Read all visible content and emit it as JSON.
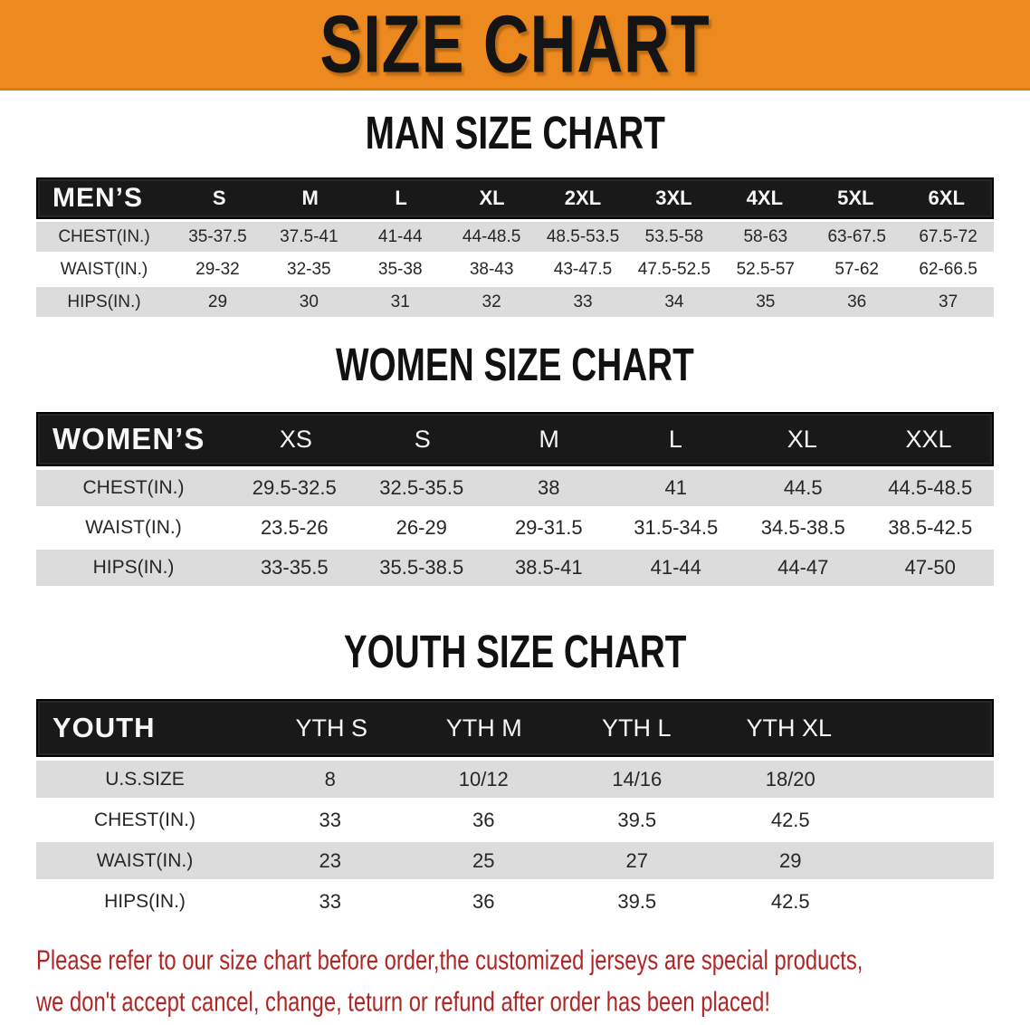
{
  "banner": {
    "title": "SIZE CHART"
  },
  "sections": [
    {
      "id": "men",
      "title": "MAN SIZE CHART",
      "header_label": "MEN’S",
      "columns": [
        "S",
        "M",
        "L",
        "XL",
        "2XL",
        "3XL",
        "4XL",
        "5XL",
        "6XL"
      ],
      "rows": [
        {
          "label": "CHEST(IN.)",
          "values": [
            "35-37.5",
            "37.5-41",
            "41-44",
            "44-48.5",
            "48.5-53.5",
            "53.5-58",
            "58-63",
            "63-67.5",
            "67.5-72"
          ]
        },
        {
          "label": "WAIST(IN.)",
          "values": [
            "29-32",
            "32-35",
            "35-38",
            "38-43",
            "43-47.5",
            "47.5-52.5",
            "52.5-57",
            "57-62",
            "62-66.5"
          ]
        },
        {
          "label": "HIPS(IN.)",
          "values": [
            "29",
            "30",
            "31",
            "32",
            "33",
            "34",
            "35",
            "36",
            "37"
          ]
        }
      ]
    },
    {
      "id": "women",
      "title": "WOMEN SIZE CHART",
      "header_label": "WOMEN’S",
      "columns": [
        "XS",
        "S",
        "M",
        "L",
        "XL",
        "XXL"
      ],
      "rows": [
        {
          "label": "CHEST(IN.)",
          "values": [
            "29.5-32.5",
            "32.5-35.5",
            "38",
            "41",
            "44.5",
            "44.5-48.5"
          ]
        },
        {
          "label": "WAIST(IN.)",
          "values": [
            "23.5-26",
            "26-29",
            "29-31.5",
            "31.5-34.5",
            "34.5-38.5",
            "38.5-42.5"
          ]
        },
        {
          "label": "HIPS(IN.)",
          "values": [
            "33-35.5",
            "35.5-38.5",
            "38.5-41",
            "41-44",
            "44-47",
            "47-50"
          ]
        }
      ]
    },
    {
      "id": "youth",
      "title": "YOUTH SIZE CHART",
      "header_label": "YOUTH",
      "columns": [
        "YTH S",
        "YTH M",
        "YTH L",
        "YTH XL"
      ],
      "rows": [
        {
          "label": "U.S.SIZE",
          "values": [
            "8",
            "10/12",
            "14/16",
            "18/20"
          ]
        },
        {
          "label": "CHEST(IN.)",
          "values": [
            "33",
            "36",
            "39.5",
            "42.5"
          ]
        },
        {
          "label": "WAIST(IN.)",
          "values": [
            "23",
            "25",
            "27",
            "29"
          ]
        },
        {
          "label": "HIPS(IN.)",
          "values": [
            "33",
            "36",
            "39.5",
            "42.5"
          ]
        }
      ]
    }
  ],
  "footer": {
    "line1": "Please refer to our size chart before order,the customized jerseys are special products,",
    "line2": "we don't accept cancel, change, teturn or refund after order has been placed!"
  },
  "colors": {
    "banner_bg": "#ED8A1F",
    "bar_bg": "#191919",
    "row_stripe": "#DCDCDC",
    "footer_red": "#B02525"
  }
}
